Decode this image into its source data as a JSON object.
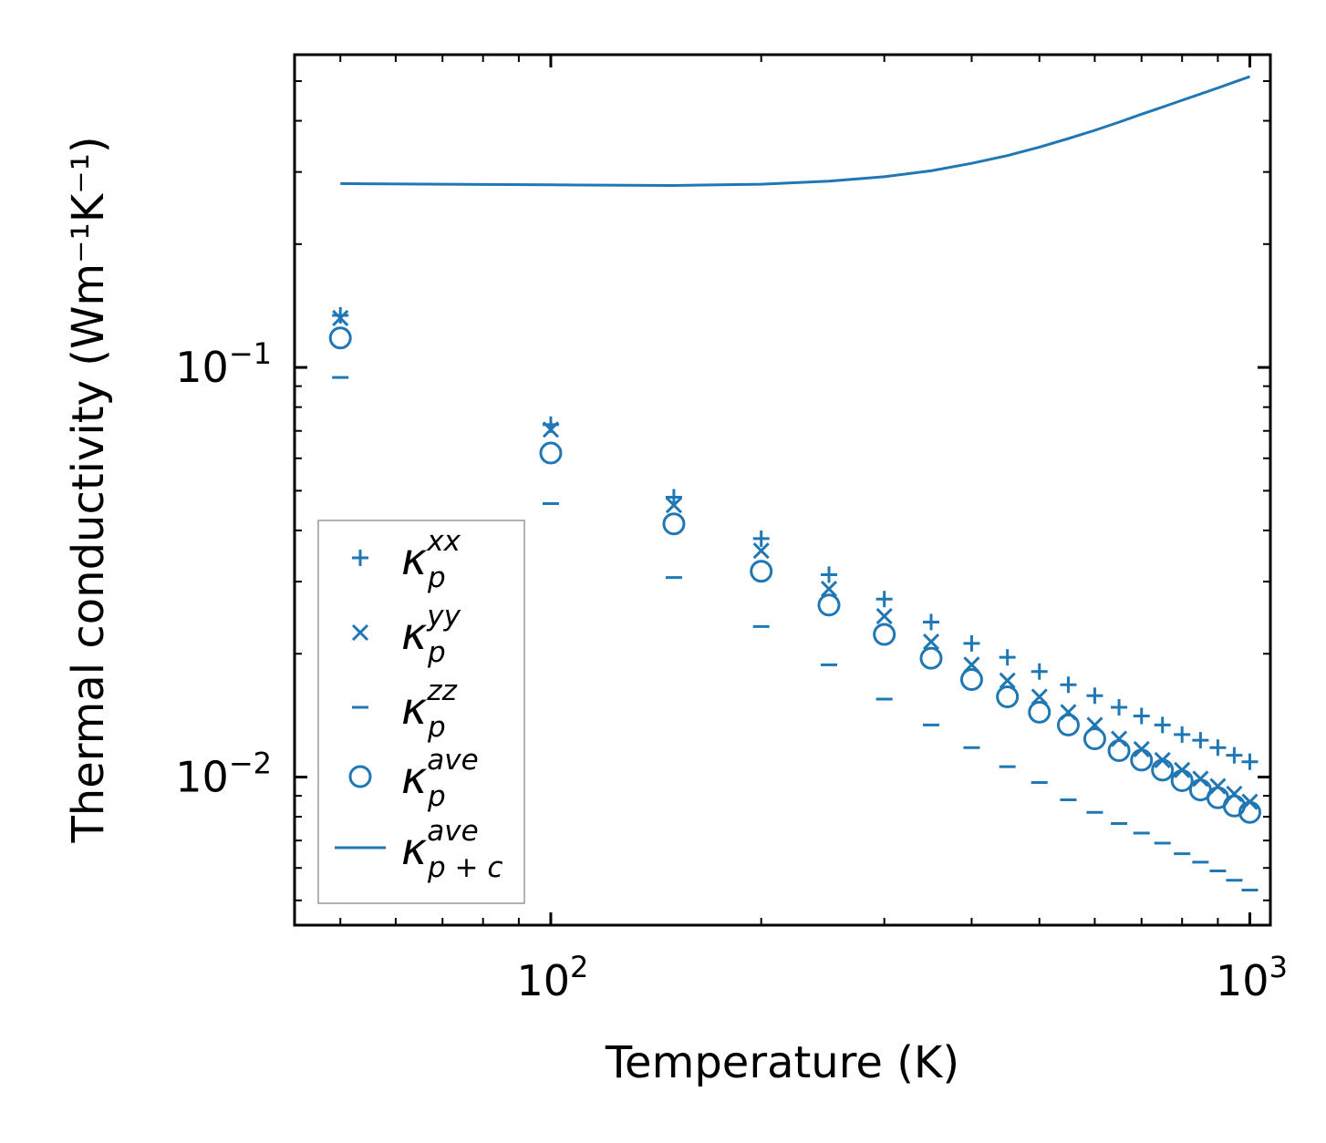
{
  "chart_data": {
    "type": "scatter",
    "xlabel": "Temperature (K)",
    "ylabel": "Thermal conductivity (Wm⁻¹K⁻¹)",
    "xscale": "log",
    "yscale": "log",
    "xlim": [
      43,
      1070
    ],
    "ylim": [
      0.00435,
      0.58
    ],
    "x_ticks": [
      {
        "value": 100,
        "base": "10",
        "exp": "2"
      },
      {
        "value": 1000,
        "base": "10",
        "exp": "3"
      }
    ],
    "y_ticks": [
      {
        "value": 0.1,
        "base": "10",
        "exp": "−1"
      },
      {
        "value": 0.01,
        "base": "10",
        "exp": "−2"
      }
    ],
    "legend_position": "lower-left",
    "color": "#1f77b4",
    "x": [
      50,
      100,
      150,
      200,
      250,
      300,
      350,
      400,
      450,
      500,
      550,
      600,
      650,
      700,
      750,
      800,
      850,
      900,
      950,
      1000
    ],
    "series": [
      {
        "name": "κ",
        "sub": "p",
        "sup": "xx",
        "marker": "plus",
        "values": [
          0.134,
          0.0725,
          0.0482,
          0.0382,
          0.0312,
          0.0272,
          0.0239,
          0.0212,
          0.0196,
          0.0181,
          0.0168,
          0.0158,
          0.0148,
          0.0141,
          0.0134,
          0.0127,
          0.0123,
          0.0118,
          0.0113,
          0.0109
        ]
      },
      {
        "name": "κ",
        "sub": "p",
        "sup": "yy",
        "marker": "x",
        "values": [
          0.132,
          0.0705,
          0.0461,
          0.0357,
          0.0288,
          0.0247,
          0.0214,
          0.0188,
          0.0172,
          0.0157,
          0.0144,
          0.0134,
          0.0124,
          0.0117,
          0.011,
          0.0104,
          0.0099,
          0.0095,
          0.0091,
          0.0087
        ]
      },
      {
        "name": "κ",
        "sub": "p",
        "sup": "zz",
        "marker": "hline",
        "values": [
          0.0945,
          0.0465,
          0.0307,
          0.0233,
          0.0188,
          0.0155,
          0.0134,
          0.0118,
          0.0106,
          0.0097,
          0.0088,
          0.0082,
          0.0077,
          0.0073,
          0.0069,
          0.0065,
          0.0062,
          0.0059,
          0.0056,
          0.0053
        ]
      },
      {
        "name": "κ",
        "sub": "p",
        "sup": "ave",
        "marker": "circle",
        "values": [
          0.118,
          0.0618,
          0.0415,
          0.0318,
          0.0263,
          0.0223,
          0.0195,
          0.0173,
          0.0157,
          0.0144,
          0.0134,
          0.0124,
          0.0116,
          0.011,
          0.0104,
          0.0098,
          0.0093,
          0.0089,
          0.0085,
          0.0082
        ]
      },
      {
        "name": "κ",
        "sub": "p + c",
        "sup": "ave",
        "marker": "line",
        "x": [
          50,
          100,
          150,
          200,
          250,
          300,
          350,
          400,
          450,
          500,
          550,
          600,
          650,
          700,
          750,
          800,
          850,
          900,
          950,
          1000
        ],
        "values": [
          0.281,
          0.279,
          0.278,
          0.28,
          0.285,
          0.292,
          0.302,
          0.315,
          0.329,
          0.345,
          0.362,
          0.379,
          0.397,
          0.415,
          0.432,
          0.449,
          0.465,
          0.481,
          0.497,
          0.513
        ]
      }
    ]
  }
}
